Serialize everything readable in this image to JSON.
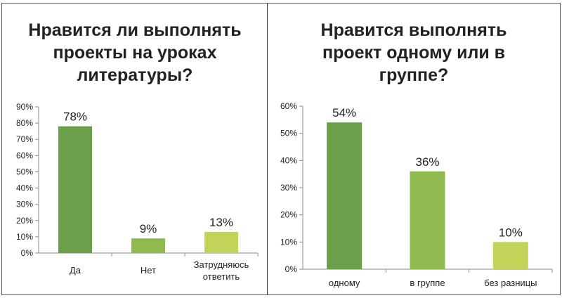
{
  "chart_data": [
    {
      "type": "bar",
      "title_lines": [
        "Нравится ли выполнять",
        "проекты на уроках",
        "литературы?"
      ],
      "categories": [
        [
          "Да"
        ],
        [
          "Нет"
        ],
        [
          "Затрудняюсь",
          "ответить"
        ]
      ],
      "values": [
        78,
        9,
        13
      ],
      "value_labels": [
        "78%",
        "9%",
        "13%"
      ],
      "yticks": [
        "0%",
        "10%",
        "20%",
        "30%",
        "40%",
        "50%",
        "60%",
        "70%",
        "80%",
        "90%"
      ],
      "ylim": [
        0,
        90
      ],
      "bar_colors": [
        "#6aa049",
        "#8fba4f",
        "#c3d35a"
      ],
      "grid": false,
      "legend": "none"
    },
    {
      "type": "bar",
      "title_lines": [
        "Нравится выполнять",
        "проект одному или в",
        "группе?"
      ],
      "categories": [
        [
          "одному"
        ],
        [
          "в группе"
        ],
        [
          "без разницы"
        ]
      ],
      "values": [
        54,
        36,
        10
      ],
      "value_labels": [
        "54%",
        "36%",
        "10%"
      ],
      "yticks": [
        "0%",
        "10%",
        "20%",
        "30%",
        "40%",
        "50%",
        "60%"
      ],
      "ylim": [
        0,
        60
      ],
      "bar_colors": [
        "#6aa049",
        "#8fba4f",
        "#c3d35a"
      ],
      "grid": false,
      "legend": "none"
    }
  ]
}
